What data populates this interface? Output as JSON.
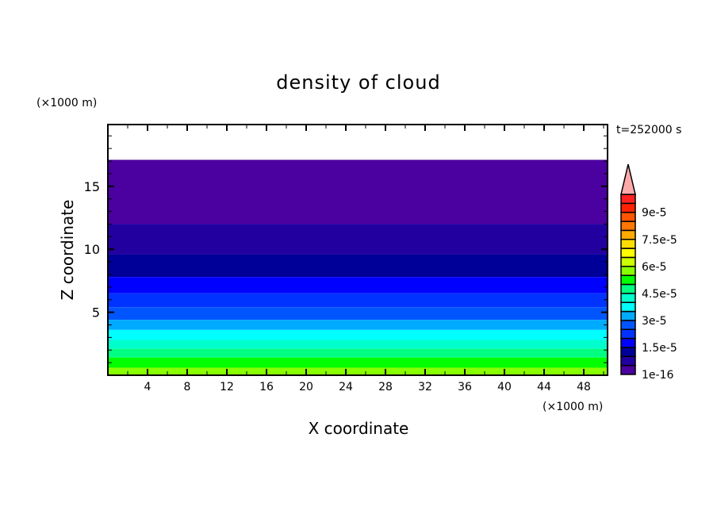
{
  "chart_data": {
    "type": "heatmap",
    "title": "density of cloud",
    "xlabel": "X coordinate",
    "ylabel": "Z coordinate",
    "x_unit": "(×1000 m)",
    "y_unit": "(×1000 m)",
    "annotation": "t=252000 s",
    "xlim": [
      0,
      50.4
    ],
    "ylim": [
      0,
      19.9
    ],
    "x_ticks": [
      4,
      8,
      12,
      16,
      20,
      24,
      28,
      32,
      36,
      40,
      44,
      48
    ],
    "y_ticks": [
      5,
      10,
      15
    ],
    "colorbar": {
      "levels": [
        1e-16,
        5e-06,
        1e-05,
        1.5e-05,
        2e-05,
        2.5e-05,
        3e-05,
        3.5e-05,
        4e-05,
        4.5e-05,
        5e-05,
        5.5e-05,
        6e-05,
        6.5e-05,
        7e-05,
        7.5e-05,
        8e-05,
        8.5e-05,
        9e-05,
        9.5e-05,
        0.0001
      ],
      "colors": [
        "#4b00a0",
        "#2200a0",
        "#000099",
        "#0000ff",
        "#0033ff",
        "#0055ff",
        "#00aaff",
        "#00ffff",
        "#00ffcc",
        "#00ff80",
        "#00ff00",
        "#88ff00",
        "#ccff00",
        "#ffff00",
        "#ffdd00",
        "#ffaa00",
        "#ff7700",
        "#ff5500",
        "#ff2200",
        "#ff2222"
      ],
      "over_color": "#ffaaaa",
      "tick_labels": [
        {
          "level": 0,
          "label": "1e-16"
        },
        {
          "level": 3,
          "label": "1.5e-5"
        },
        {
          "level": 6,
          "label": "3e-5"
        },
        {
          "level": 9,
          "label": "4.5e-5"
        },
        {
          "level": 12,
          "label": "6e-5"
        },
        {
          "level": 15,
          "label": "7.5e-5"
        },
        {
          "level": 18,
          "label": "9e-5"
        }
      ]
    },
    "bands": [
      {
        "z": [
          12.0,
          17.1
        ],
        "level": 0
      },
      {
        "z": [
          9.6,
          12.0
        ],
        "level": 1
      },
      {
        "z": [
          7.8,
          9.6
        ],
        "level": 2
      },
      {
        "z": [
          6.5,
          7.8
        ],
        "level": 3
      },
      {
        "z": [
          5.4,
          6.5
        ],
        "level": 4
      },
      {
        "z": [
          4.4,
          5.4
        ],
        "level": 5
      },
      {
        "z": [
          3.6,
          4.4
        ],
        "level": 6
      },
      {
        "z": [
          2.8,
          3.6
        ],
        "level": 7
      },
      {
        "z": [
          2.1,
          2.8
        ],
        "level": 8
      },
      {
        "z": [
          1.4,
          2.1
        ],
        "level": 9
      },
      {
        "z": [
          0.6,
          1.4
        ],
        "level": 10
      },
      {
        "z": [
          0.0,
          0.6
        ],
        "level": 11
      }
    ]
  }
}
